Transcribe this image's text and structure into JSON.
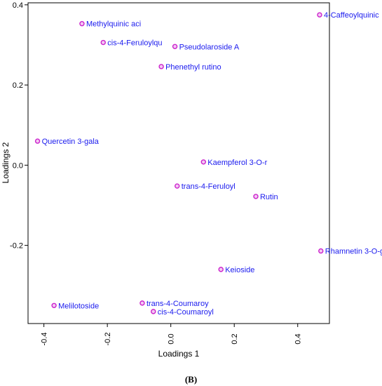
{
  "chart_data": {
    "type": "scatter",
    "xlabel": "Loadings 1",
    "ylabel": "Loadings 2",
    "xlim": [
      -0.45,
      0.5
    ],
    "ylim": [
      -0.395,
      0.405
    ],
    "x_ticks": [
      -0.4,
      -0.2,
      0.0,
      0.2,
      0.4
    ],
    "x_tick_labels": [
      "-0.4",
      "-0.2",
      "0.0",
      "0.2",
      "0.4"
    ],
    "y_ticks": [
      -0.2,
      0.0,
      0.2,
      0.4
    ],
    "y_tick_labels": [
      "-0.2",
      "0.0",
      "0.2",
      "0.4"
    ],
    "grid": false,
    "point_color": "#cc22cc",
    "label_color": "#1a1aee",
    "points": [
      {
        "label": "4-Caffeoylquinic",
        "x": 0.469,
        "y": 0.375
      },
      {
        "label": "Methylquinic aci",
        "x": -0.28,
        "y": 0.353
      },
      {
        "label": "cis-4-Feruloylqu",
        "x": -0.213,
        "y": 0.306
      },
      {
        "label": "Pseudolaroside A",
        "x": 0.013,
        "y": 0.296
      },
      {
        "label": "Phenethyl rutino",
        "x": -0.03,
        "y": 0.246
      },
      {
        "label": "Quercetin 3-gala",
        "x": -0.42,
        "y": 0.06
      },
      {
        "label": "Kaempferol 3-O-r",
        "x": 0.103,
        "y": 0.008
      },
      {
        "label": "trans-4-Feruloyl",
        "x": 0.02,
        "y": -0.052
      },
      {
        "label": "Rutin",
        "x": 0.268,
        "y": -0.078
      },
      {
        "label": "Rhamnetin 3-O-g",
        "x": 0.473,
        "y": -0.214
      },
      {
        "label": "Keioside",
        "x": 0.158,
        "y": -0.26
      },
      {
        "label": "Melilotoside",
        "x": -0.368,
        "y": -0.35
      },
      {
        "label": "trans-4-Coumaroy",
        "x": -0.09,
        "y": -0.344
      },
      {
        "label": "cis-4-Coumaroyl",
        "x": -0.055,
        "y": -0.365
      }
    ]
  },
  "caption": "(B)"
}
